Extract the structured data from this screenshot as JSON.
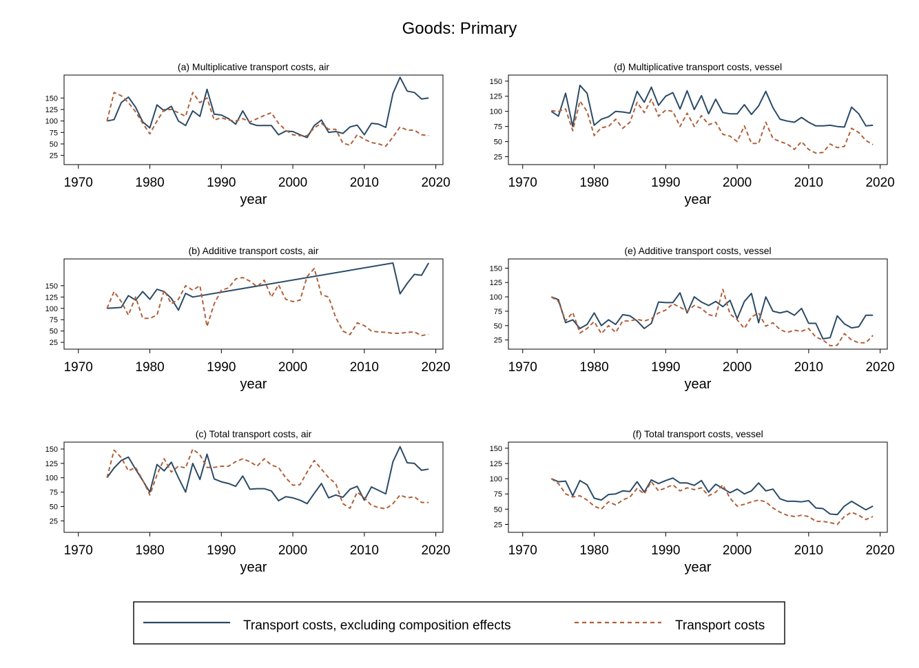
{
  "figure": {
    "title": "Goods: Primary",
    "legend": {
      "items": [
        {
          "label": "Transport costs, excluding composition effects",
          "color": "#2b4a66",
          "style": "solid"
        },
        {
          "label": "Transport costs",
          "color": "#b0603a",
          "style": "dashed"
        }
      ]
    }
  },
  "chart_data": [
    {
      "type": "line",
      "title": "(a) Multiplicative transport costs, air",
      "xlabel": "year",
      "xlim": [
        1968,
        2021
      ],
      "ylim": [
        5,
        200
      ],
      "xticks": [
        1970,
        1980,
        1990,
        2000,
        2010,
        2020
      ],
      "yticks": [
        25,
        50,
        75,
        100,
        125,
        150
      ],
      "grid": false,
      "x": [
        1974,
        1975,
        1976,
        1977,
        1978,
        1979,
        1980,
        1981,
        1982,
        1983,
        1984,
        1985,
        1986,
        1987,
        1988,
        1989,
        1990,
        1991,
        1992,
        1993,
        1994,
        1995,
        1996,
        1997,
        1998,
        1999,
        2000,
        2001,
        2002,
        2003,
        2004,
        2005,
        2006,
        2007,
        2008,
        2009,
        2010,
        2011,
        2012,
        2013,
        2014,
        2015,
        2016,
        2017,
        2018,
        2019
      ],
      "series": [
        {
          "name": "Transport costs, excluding composition effects",
          "values": [
            100,
            103,
            140,
            152,
            130,
            98,
            85,
            135,
            122,
            132,
            100,
            90,
            122,
            110,
            169,
            115,
            113,
            105,
            93,
            122,
            95,
            90,
            90,
            90,
            70,
            78,
            77,
            70,
            64,
            90,
            102,
            75,
            77,
            73,
            87,
            91,
            70,
            95,
            93,
            86,
            160,
            195,
            165,
            162,
            148,
            150
          ]
        },
        {
          "name": "Transport costs",
          "values": [
            100,
            162,
            155,
            140,
            120,
            95,
            72,
            100,
            125,
            125,
            118,
            110,
            162,
            140,
            150,
            102,
            107,
            102,
            100,
            105,
            98,
            105,
            112,
            118,
            95,
            80,
            70,
            68,
            68,
            85,
            95,
            82,
            82,
            52,
            47,
            70,
            60,
            53,
            50,
            45,
            65,
            87,
            80,
            80,
            70,
            68
          ]
        }
      ]
    },
    {
      "type": "line",
      "title": "(b) Additive transport costs, air",
      "xlabel": "year",
      "xlim": [
        1968,
        2021
      ],
      "ylim": [
        10,
        209
      ],
      "xticks": [
        1970,
        1980,
        1990,
        2000,
        2010,
        2020
      ],
      "yticks": [
        25,
        50,
        75,
        100,
        125,
        150
      ],
      "grid": false,
      "series": [
        {
          "name": "Transport costs, excluding composition effects",
          "x": [
            1974,
            1975,
            1976,
            1977,
            1978,
            1979,
            1980,
            1981,
            1982,
            1983,
            1984,
            1985,
            1986,
            2014,
            2015,
            2016,
            2017,
            2018,
            2019
          ],
          "values": [
            100,
            101,
            102,
            128,
            118,
            137,
            120,
            142,
            137,
            122,
            96,
            133,
            125,
            200,
            132,
            155,
            175,
            173,
            200
          ]
        },
        {
          "name": "Transport costs",
          "x": [
            1974,
            1975,
            1976,
            1977,
            1978,
            1979,
            1980,
            1981,
            1982,
            1983,
            1984,
            1985,
            1986,
            1987,
            1988,
            1989,
            1990,
            1991,
            1992,
            1993,
            1994,
            1995,
            1996,
            1997,
            1998,
            1999,
            2000,
            2001,
            2002,
            2003,
            2004,
            2005,
            2006,
            2007,
            2008,
            2009,
            2010,
            2011,
            2012,
            2013,
            2014,
            2015,
            2016,
            2017,
            2018,
            2019
          ],
          "values": [
            100,
            137,
            115,
            85,
            125,
            78,
            78,
            85,
            140,
            110,
            120,
            150,
            140,
            150,
            60,
            110,
            140,
            145,
            165,
            168,
            160,
            148,
            162,
            125,
            152,
            120,
            115,
            118,
            170,
            188,
            130,
            125,
            80,
            50,
            42,
            68,
            62,
            50,
            48,
            47,
            45,
            45,
            47,
            48,
            40,
            43
          ]
        }
      ]
    },
    {
      "type": "line",
      "title": "(c) Total transport costs, air",
      "xlabel": "year",
      "xlim": [
        1968,
        2021
      ],
      "ylim": [
        5,
        162
      ],
      "xticks": [
        1970,
        1980,
        1990,
        2000,
        2010,
        2020
      ],
      "yticks": [
        25,
        50,
        75,
        100,
        125,
        150
      ],
      "grid": false,
      "x": [
        1974,
        1975,
        1976,
        1977,
        1978,
        1979,
        1980,
        1981,
        1982,
        1983,
        1984,
        1985,
        1986,
        1987,
        1988,
        1989,
        1990,
        1991,
        1992,
        1993,
        1994,
        1995,
        1996,
        1997,
        1998,
        1999,
        2000,
        2001,
        2002,
        2003,
        2004,
        2005,
        2006,
        2007,
        2008,
        2009,
        2010,
        2011,
        2012,
        2013,
        2014,
        2015,
        2016,
        2017,
        2018,
        2019
      ],
      "series": [
        {
          "name": "Transport costs, excluding composition effects",
          "values": [
            100,
            117,
            130,
            136,
            115,
            95,
            75,
            123,
            112,
            127,
            100,
            75,
            125,
            97,
            141,
            98,
            93,
            90,
            85,
            103,
            80,
            81,
            81,
            77,
            60,
            67,
            65,
            61,
            55,
            73,
            90,
            65,
            70,
            66,
            80,
            85,
            61,
            84,
            78,
            72,
            128,
            154,
            126,
            125,
            113,
            115
          ]
        },
        {
          "name": "Transport costs",
          "values": [
            100,
            148,
            135,
            112,
            118,
            96,
            70,
            105,
            133,
            110,
            120,
            117,
            150,
            140,
            118,
            118,
            120,
            120,
            128,
            133,
            128,
            120,
            133,
            122,
            118,
            100,
            87,
            88,
            110,
            130,
            115,
            100,
            90,
            55,
            47,
            75,
            65,
            52,
            48,
            46,
            55,
            70,
            65,
            67,
            57,
            57
          ]
        }
      ]
    },
    {
      "type": "line",
      "title": "(d) Multiplicative transport costs, vessel",
      "xlabel": "year",
      "xlim": [
        1968,
        2021
      ],
      "ylim": [
        12,
        160
      ],
      "xticks": [
        1970,
        1980,
        1990,
        2000,
        2010,
        2020
      ],
      "yticks": [
        25,
        50,
        75,
        100,
        125,
        150
      ],
      "grid": false,
      "x": [
        1974,
        1975,
        1976,
        1977,
        1978,
        1979,
        1980,
        1981,
        1982,
        1983,
        1984,
        1985,
        1986,
        1987,
        1988,
        1989,
        1990,
        1991,
        1992,
        1993,
        1994,
        1995,
        1996,
        1997,
        1998,
        1999,
        2000,
        2001,
        2002,
        2003,
        2004,
        2005,
        2006,
        2007,
        2008,
        2009,
        2010,
        2011,
        2012,
        2013,
        2014,
        2015,
        2016,
        2017,
        2018,
        2019
      ],
      "series": [
        {
          "name": "Transport costs, excluding composition effects",
          "values": [
            100,
            92,
            130,
            75,
            143,
            130,
            77,
            87,
            91,
            100,
            99,
            97,
            133,
            115,
            140,
            110,
            125,
            131,
            104,
            134,
            103,
            126,
            96,
            120,
            98,
            96,
            96,
            111,
            95,
            109,
            133,
            106,
            87,
            84,
            82,
            90,
            82,
            76,
            76,
            77,
            75,
            74,
            107,
            96,
            76,
            77
          ]
        },
        {
          "name": "Transport costs",
          "values": [
            101,
            100,
            104,
            68,
            117,
            100,
            60,
            73,
            75,
            87,
            72,
            82,
            115,
            98,
            120,
            92,
            102,
            100,
            75,
            97,
            75,
            93,
            78,
            82,
            62,
            59,
            50,
            76,
            47,
            47,
            82,
            55,
            50,
            46,
            37,
            50,
            37,
            31,
            32,
            46,
            40,
            42,
            72,
            65,
            52,
            45
          ]
        }
      ]
    },
    {
      "type": "line",
      "title": "(e) Additive transport costs, vessel",
      "xlabel": "year",
      "xlim": [
        1968,
        2021
      ],
      "ylim": [
        9,
        166
      ],
      "xticks": [
        1970,
        1980,
        1990,
        2000,
        2010,
        2020
      ],
      "yticks": [
        25,
        50,
        75,
        100,
        125,
        150
      ],
      "grid": false,
      "x": [
        1974,
        1975,
        1976,
        1977,
        1978,
        1979,
        1980,
        1981,
        1982,
        1983,
        1984,
        1985,
        1986,
        1987,
        1988,
        1989,
        1990,
        1991,
        1992,
        1993,
        1994,
        1995,
        1996,
        1997,
        1998,
        1999,
        2000,
        2001,
        2002,
        2003,
        2004,
        2005,
        2006,
        2007,
        2008,
        2009,
        2010,
        2011,
        2012,
        2013,
        2014,
        2015,
        2016,
        2017,
        2018,
        2019
      ],
      "series": [
        {
          "name": "Transport costs, excluding composition effects",
          "values": [
            100,
            95,
            55,
            60,
            45,
            52,
            72,
            50,
            60,
            52,
            69,
            67,
            58,
            45,
            54,
            91,
            90,
            90,
            107,
            72,
            100,
            91,
            85,
            92,
            83,
            94,
            62,
            92,
            106,
            55,
            100,
            75,
            72,
            75,
            68,
            80,
            54,
            54,
            27,
            29,
            67,
            53,
            46,
            48,
            68,
            68
          ]
        },
        {
          "name": "Transport costs",
          "values": [
            100,
            92,
            58,
            73,
            37,
            45,
            57,
            36,
            50,
            38,
            58,
            58,
            61,
            58,
            62,
            72,
            77,
            88,
            82,
            75,
            85,
            80,
            69,
            66,
            113,
            70,
            60,
            45,
            65,
            72,
            49,
            55,
            43,
            38,
            42,
            40,
            45,
            30,
            25,
            15,
            16,
            36,
            25,
            20,
            20,
            33
          ]
        }
      ]
    },
    {
      "type": "line",
      "title": "(f) Total transport costs, vessel",
      "xlabel": "year",
      "xlim": [
        1968,
        2021
      ],
      "ylim": [
        12,
        160
      ],
      "xticks": [
        1970,
        1980,
        1990,
        2000,
        2010,
        2020
      ],
      "yticks": [
        25,
        50,
        75,
        100,
        125,
        150
      ],
      "grid": false,
      "x": [
        1974,
        1975,
        1976,
        1977,
        1978,
        1979,
        1980,
        1981,
        1982,
        1983,
        1984,
        1985,
        1986,
        1987,
        1988,
        1989,
        1990,
        1991,
        1992,
        1993,
        1994,
        1995,
        1996,
        1997,
        1998,
        1999,
        2000,
        2001,
        2002,
        2003,
        2004,
        2005,
        2006,
        2007,
        2008,
        2009,
        2010,
        2011,
        2012,
        2013,
        2014,
        2015,
        2016,
        2017,
        2018,
        2019
      ],
      "series": [
        {
          "name": "Transport costs, excluding composition effects",
          "values": [
            100,
            95,
            96,
            72,
            97,
            90,
            68,
            65,
            74,
            75,
            80,
            79,
            95,
            78,
            98,
            92,
            97,
            101,
            93,
            93,
            89,
            97,
            78,
            91,
            84,
            77,
            83,
            75,
            80,
            93,
            80,
            83,
            67,
            63,
            63,
            62,
            64,
            52,
            51,
            42,
            41,
            55,
            63,
            56,
            49,
            55
          ]
        },
        {
          "name": "Transport costs",
          "values": [
            100,
            92,
            75,
            70,
            72,
            65,
            55,
            50,
            62,
            57,
            65,
            70,
            84,
            75,
            95,
            80,
            85,
            90,
            80,
            85,
            82,
            85,
            72,
            78,
            90,
            68,
            55,
            58,
            62,
            65,
            62,
            52,
            45,
            40,
            38,
            40,
            38,
            30,
            30,
            28,
            25,
            38,
            45,
            40,
            33,
            38
          ]
        }
      ]
    }
  ]
}
